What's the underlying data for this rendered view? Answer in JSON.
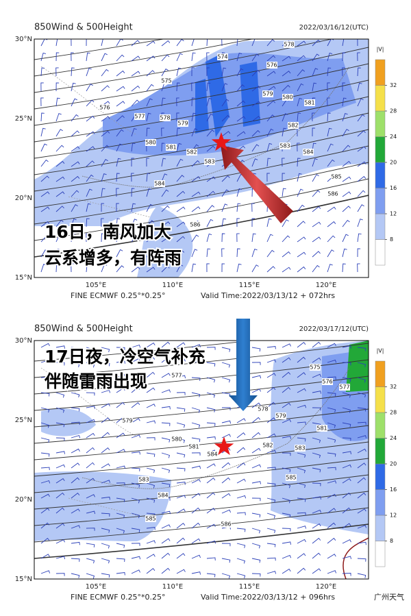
{
  "panels": [
    {
      "title": "850Wind & 500Height",
      "date": "2022/03/16/12(UTC)",
      "lat_labels": [
        "30°N",
        "25°N",
        "20°N",
        "15°N"
      ],
      "lon_labels": [
        "105°E",
        "110°E",
        "115°E",
        "120°E"
      ],
      "model": "FINE ECMWF 0.25°*0.25°",
      "valid_time": "Valid Time:2022/03/13/12 + 072hrs",
      "annotation": [
        "16日，南风加大",
        "云系增多，有阵雨"
      ],
      "contour_labels": [
        "574",
        "575",
        "576",
        "577",
        "578",
        "579",
        "580",
        "581",
        "582",
        "583",
        "584",
        "585",
        "586",
        "586",
        "576",
        "579",
        "580",
        "581",
        "582",
        "583",
        "584",
        "578"
      ],
      "colorbar": {
        "label": "|V|",
        "ticks": [
          8,
          12,
          16,
          20,
          24,
          28,
          32
        ],
        "colors": [
          "#ffffff",
          "#b4c8f5",
          "#7f9ef0",
          "#2f6ae6",
          "#22a838",
          "#9ee06a",
          "#f5e04a",
          "#f0a020"
        ]
      }
    },
    {
      "title": "850Wind & 500Height",
      "date": "2022/03/17/12(UTC)",
      "lat_labels": [
        "30°N",
        "25°N",
        "20°N",
        "15°N"
      ],
      "lon_labels": [
        "105°E",
        "110°E",
        "115°E",
        "120°E"
      ],
      "model": "FINE ECMWF 0.25°*0.25°",
      "valid_time": "Valid Time:2022/03/13/12 + 096hrs",
      "annotation": [
        "17日夜，冷空气补充",
        "伴随雷雨出现"
      ],
      "contour_labels": [
        "575",
        "576",
        "577",
        "578",
        "579",
        "580",
        "581",
        "582",
        "583",
        "584",
        "585",
        "586",
        "583",
        "584",
        "585",
        "581",
        "577",
        "579"
      ],
      "colorbar": {
        "label": "|V|",
        "ticks": [
          8,
          12,
          16,
          20,
          24,
          28,
          32
        ],
        "colors": [
          "#ffffff",
          "#b4c8f5",
          "#7f9ef0",
          "#2f6ae6",
          "#22a838",
          "#9ee06a",
          "#f5e04a",
          "#f0a020"
        ]
      }
    }
  ],
  "watermark": "广州天气"
}
